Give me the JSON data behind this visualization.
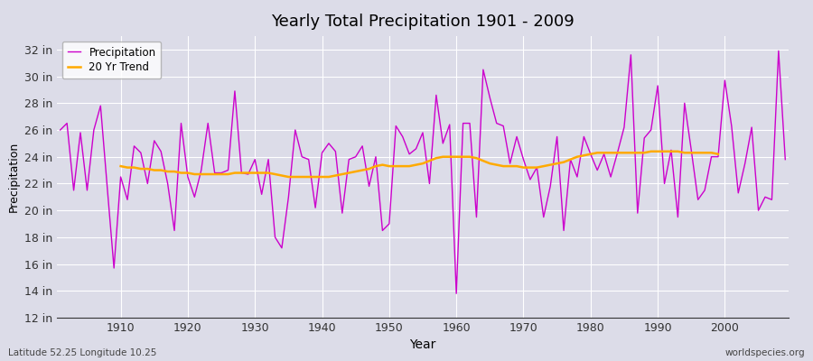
{
  "title": "Yearly Total Precipitation 1901 - 2009",
  "xlabel": "Year",
  "ylabel": "Precipitation",
  "footnote_left": "Latitude 52.25 Longitude 10.25",
  "footnote_right": "worldspecies.org",
  "legend_labels": [
    "Precipitation",
    "20 Yr Trend"
  ],
  "precip_color": "#cc00cc",
  "trend_color": "#ffaa00",
  "bg_color": "#dcdce8",
  "plot_bg_color": "#dcdce8",
  "ylim": [
    12,
    33
  ],
  "yticks": [
    12,
    14,
    16,
    18,
    20,
    22,
    24,
    26,
    28,
    30,
    32
  ],
  "xlim_start": 1901,
  "xlim_end": 2010,
  "xtick_start": 1910,
  "xtick_step": 10,
  "years": [
    1901,
    1902,
    1903,
    1904,
    1905,
    1906,
    1907,
    1908,
    1909,
    1910,
    1911,
    1912,
    1913,
    1914,
    1915,
    1916,
    1917,
    1918,
    1919,
    1920,
    1921,
    1922,
    1923,
    1924,
    1925,
    1926,
    1927,
    1928,
    1929,
    1930,
    1931,
    1932,
    1933,
    1934,
    1935,
    1936,
    1937,
    1938,
    1939,
    1940,
    1941,
    1942,
    1943,
    1944,
    1945,
    1946,
    1947,
    1948,
    1949,
    1950,
    1951,
    1952,
    1953,
    1954,
    1955,
    1956,
    1957,
    1958,
    1959,
    1960,
    1961,
    1962,
    1963,
    1964,
    1965,
    1966,
    1967,
    1968,
    1969,
    1970,
    1971,
    1972,
    1973,
    1974,
    1975,
    1976,
    1977,
    1978,
    1979,
    1980,
    1981,
    1982,
    1983,
    1984,
    1985,
    1986,
    1987,
    1988,
    1989,
    1990,
    1991,
    1992,
    1993,
    1994,
    1995,
    1996,
    1997,
    1998,
    1999,
    2000,
    2001,
    2002,
    2003,
    2004,
    2005,
    2006,
    2007,
    2008,
    2009
  ],
  "precip": [
    26.0,
    26.5,
    21.5,
    25.8,
    21.5,
    26.0,
    27.8,
    21.7,
    15.7,
    22.5,
    20.8,
    24.8,
    24.3,
    22.0,
    25.2,
    24.4,
    22.0,
    18.5,
    26.5,
    22.5,
    21.0,
    23.0,
    26.5,
    22.8,
    22.8,
    23.0,
    28.9,
    22.8,
    22.7,
    23.8,
    21.2,
    23.8,
    18.0,
    17.2,
    21.0,
    26.0,
    24.0,
    23.8,
    20.2,
    24.3,
    25.0,
    24.4,
    19.8,
    23.8,
    24.0,
    24.8,
    21.8,
    24.0,
    18.5,
    19.0,
    26.3,
    25.5,
    24.2,
    24.6,
    25.8,
    22.0,
    28.6,
    25.0,
    26.4,
    13.8,
    26.5,
    26.5,
    19.5,
    30.5,
    28.4,
    26.5,
    26.3,
    23.5,
    25.5,
    23.8,
    22.3,
    23.2,
    19.5,
    21.8,
    25.5,
    18.5,
    23.8,
    22.5,
    25.5,
    24.2,
    23.0,
    24.2,
    22.5,
    24.3,
    26.2,
    31.6,
    19.8,
    25.4,
    26.0,
    29.3,
    22.0,
    24.5,
    19.5,
    28.0,
    24.5,
    20.8,
    21.5,
    24.0,
    24.0,
    29.7,
    26.3,
    21.3,
    23.5,
    26.2,
    20.0,
    21.0,
    20.8,
    31.9,
    23.8
  ],
  "trend": [
    null,
    null,
    null,
    null,
    null,
    null,
    null,
    null,
    null,
    23.3,
    23.2,
    23.2,
    23.1,
    23.1,
    23.0,
    23.0,
    22.9,
    22.9,
    22.8,
    22.8,
    22.7,
    22.7,
    22.7,
    22.7,
    22.7,
    22.7,
    22.8,
    22.8,
    22.8,
    22.8,
    22.8,
    22.8,
    22.7,
    22.6,
    22.5,
    22.5,
    22.5,
    22.5,
    22.5,
    22.5,
    22.5,
    22.6,
    22.7,
    22.8,
    22.9,
    23.0,
    23.1,
    23.3,
    23.4,
    23.3,
    23.3,
    23.3,
    23.3,
    23.4,
    23.5,
    23.7,
    23.9,
    24.0,
    24.0,
    24.0,
    24.0,
    24.0,
    23.9,
    23.7,
    23.5,
    23.4,
    23.3,
    23.3,
    23.3,
    23.2,
    23.2,
    23.2,
    23.3,
    23.4,
    23.5,
    23.6,
    23.8,
    24.0,
    24.1,
    24.2,
    24.3,
    24.3,
    24.3,
    24.3,
    24.3,
    24.3,
    24.3,
    24.3,
    24.4,
    24.4,
    24.4,
    24.4,
    24.4,
    24.3,
    24.3,
    24.3,
    24.3,
    24.3,
    24.2
  ]
}
